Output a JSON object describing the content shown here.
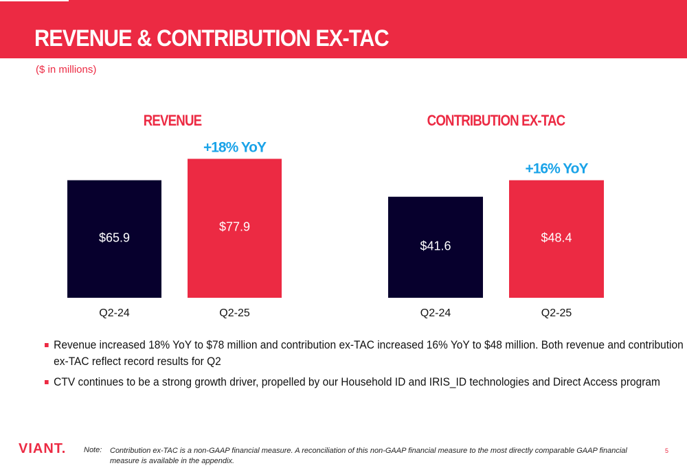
{
  "slide": {
    "title": "REVENUE & CONTRIBUTION EX-TAC",
    "subtitle": "($ in millions)"
  },
  "chart_data": [
    {
      "type": "bar",
      "title": "REVENUE",
      "categories": [
        "Q2-24",
        "Q2-25"
      ],
      "values": [
        65.9,
        77.9
      ],
      "value_labels": [
        "$65.9",
        "$77.9"
      ],
      "growth_label": "+18% YoY",
      "colors": [
        "#07002d",
        "#ec2a43"
      ]
    },
    {
      "type": "bar",
      "title": "CONTRIBUTION EX-TAC",
      "categories": [
        "Q2-24",
        "Q2-25"
      ],
      "values": [
        41.6,
        48.4
      ],
      "value_labels": [
        "$41.6",
        "$48.4"
      ],
      "growth_label": "+16% YoY",
      "colors": [
        "#07002d",
        "#ec2a43"
      ]
    }
  ],
  "bullets": [
    "Revenue increased 18% YoY to $78 million and contribution ex-TAC increased 16% YoY to $48 million. Both revenue and contribution ex-TAC reflect record results for Q2",
    "CTV continues to be a strong growth driver, propelled by our Household ID and IRIS_ID technologies and Direct Access program"
  ],
  "footer": {
    "logo": "VIANT.",
    "note_label": "Note:",
    "note_text": "Contribution ex-TAC is a non-GAAP financial measure. A reconciliation of this non-GAAP financial measure to the most directly comparable GAAP financial measure is available in the appendix.",
    "page_number": "5"
  },
  "colors": {
    "brand_red": "#ec2a43",
    "navy": "#07002d",
    "growth_blue": "#1aa3e8"
  }
}
